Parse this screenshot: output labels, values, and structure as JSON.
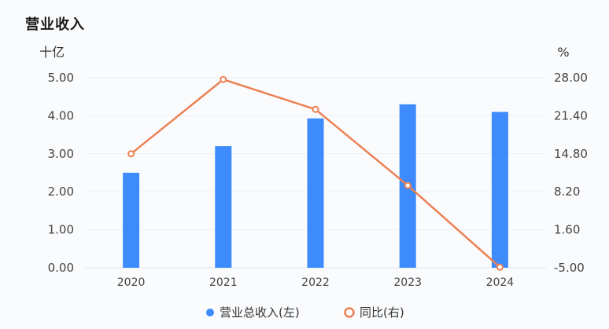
{
  "page": {
    "title": "营业收入"
  },
  "chart_data": {
    "type": "bar+line",
    "categories": [
      "2020",
      "2021",
      "2022",
      "2023",
      "2024"
    ],
    "left_axis": {
      "unit": "十亿",
      "ticks": [
        "0.00",
        "1.00",
        "2.00",
        "3.00",
        "4.00",
        "5.00"
      ],
      "range": [
        0,
        5
      ]
    },
    "right_axis": {
      "unit": "%",
      "ticks": [
        "-5.00",
        "1.60",
        "8.20",
        "14.80",
        "21.40",
        "28.00"
      ],
      "range": [
        -5,
        28
      ]
    },
    "series": [
      {
        "name": "营业总收入(左)",
        "type": "bar",
        "axis": "left",
        "color": "#3d8bfd",
        "values": [
          2.5,
          3.2,
          3.93,
          4.3,
          4.1
        ]
      },
      {
        "name": "同比(右)",
        "type": "line",
        "axis": "right",
        "color": "#ec8154",
        "values": [
          14.8,
          27.7,
          22.5,
          9.3,
          -4.9
        ]
      }
    ],
    "grid": true,
    "legend": "bottom-center"
  }
}
